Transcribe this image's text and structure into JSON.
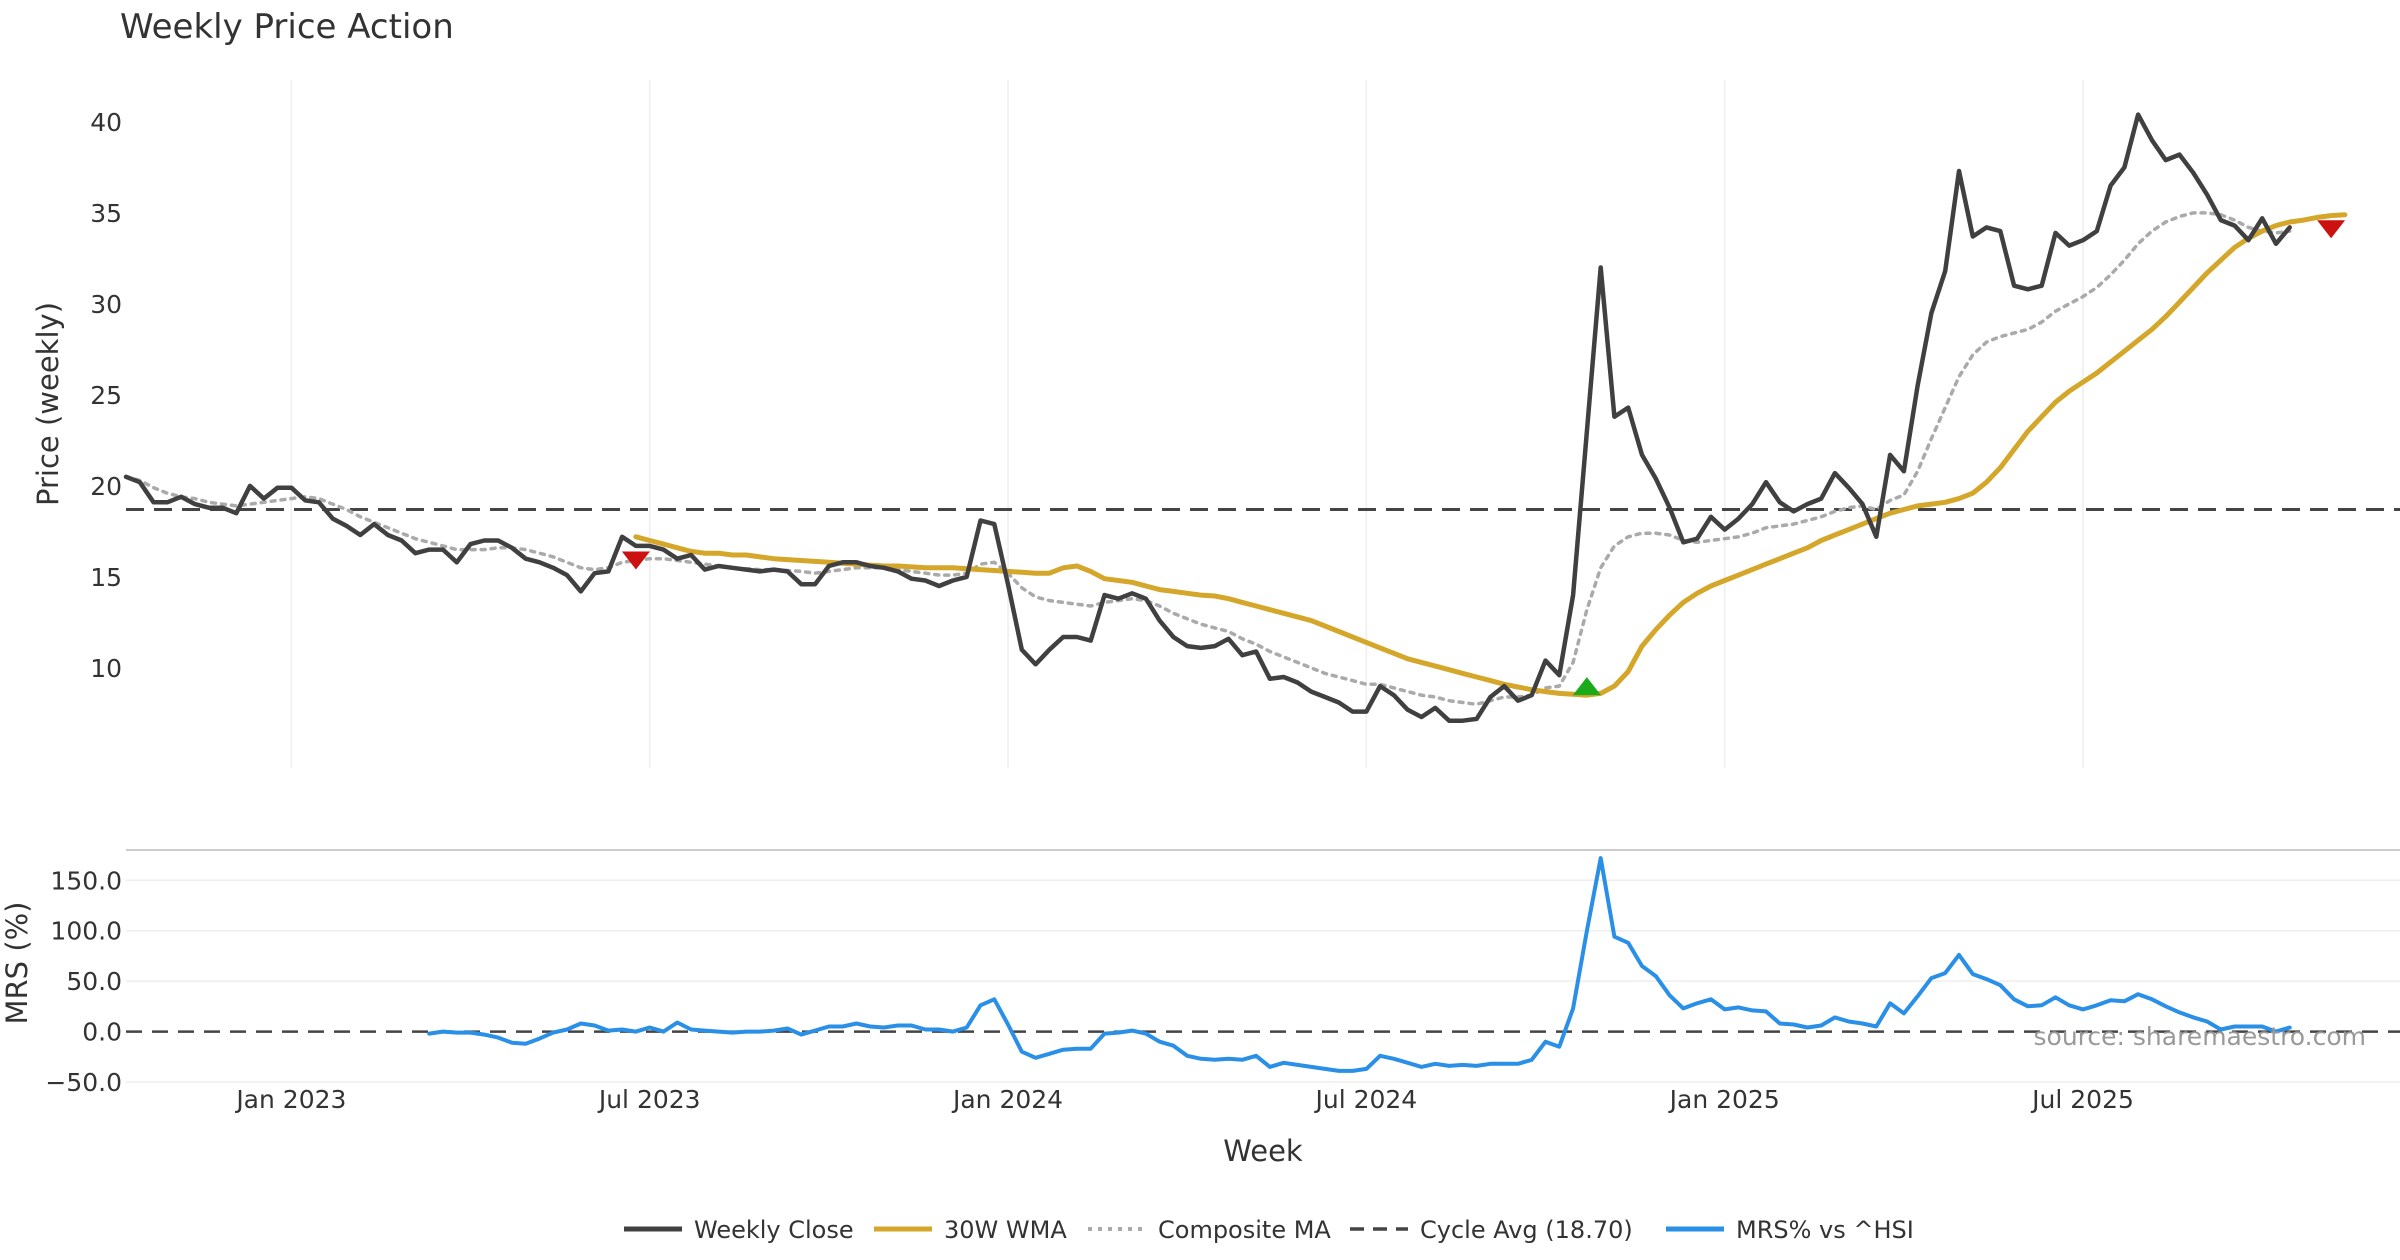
{
  "chart_data": {
    "type": "line",
    "title": "Weekly Price Action",
    "xlabel": "Week",
    "source": "source: sharemaestro.com",
    "colors": {
      "close": "#404040",
      "wma": "#D4A62A",
      "composite": "#AAAAAA",
      "cycle": "#444444",
      "mrs": "#2A8FE6",
      "buy_marker": "#1AAA1A",
      "sell_marker": "#CC1111",
      "grid": "#EEEEEE"
    },
    "x_ticks": [
      "Jan 2023",
      "Jul 2023",
      "Jan 2024",
      "Jul 2024",
      "Jan 2025",
      "Jul 2025"
    ],
    "x_range_weeks": [
      -12,
      153
    ],
    "price_panel": {
      "ylabel": "Price (weekly)",
      "ylim": [
        4.5,
        42.3
      ],
      "yticks": [
        10,
        15,
        20,
        25,
        30,
        35,
        40
      ],
      "cycle_avg": 18.7,
      "series": [
        {
          "name": "Weekly Close",
          "start_week": -12,
          "values": [
            20.5,
            20.2,
            19.1,
            19.1,
            19.4,
            19.0,
            18.8,
            18.8,
            18.5,
            20.0,
            19.3,
            19.9,
            19.9,
            19.2,
            19.1,
            18.2,
            17.8,
            17.3,
            17.9,
            17.3,
            17.0,
            16.3,
            16.5,
            16.5,
            15.8,
            16.8,
            17.0,
            17.0,
            16.6,
            16.0,
            15.8,
            15.5,
            15.1,
            14.2,
            15.2,
            15.3,
            17.2,
            16.7,
            16.7,
            16.5,
            16.0,
            16.2,
            15.4,
            15.6,
            15.5,
            15.4,
            15.3,
            15.4,
            15.3,
            14.6,
            14.6,
            15.6,
            15.8,
            15.8,
            15.6,
            15.5,
            15.3,
            14.9,
            14.8,
            14.5,
            14.8,
            15.0,
            18.1,
            17.9,
            14.6,
            11.0,
            10.2,
            11.0,
            11.7,
            11.7,
            11.5,
            14.0,
            13.8,
            14.1,
            13.8,
            12.6,
            11.7,
            11.2,
            11.1,
            11.2,
            11.6,
            10.7,
            10.9,
            9.4,
            9.5,
            9.2,
            8.7,
            8.4,
            8.1,
            7.6,
            7.6,
            9.0,
            8.5,
            7.7,
            7.3,
            7.8,
            7.1,
            7.1,
            7.2,
            8.4,
            9.0,
            8.2,
            8.5,
            10.4,
            9.6,
            14.0,
            23.0,
            32.0,
            23.8,
            24.3,
            21.7,
            20.4,
            18.8,
            16.9,
            17.1,
            18.3,
            17.6,
            18.2,
            19.0,
            20.2,
            19.1,
            18.6,
            19.0,
            19.3,
            20.7,
            19.9,
            19.0,
            17.2,
            21.7,
            20.8,
            25.5,
            29.5,
            31.8,
            37.3,
            33.7,
            34.2,
            34.0,
            31.0,
            30.8,
            31.0,
            33.9,
            33.2,
            33.5,
            34.0,
            36.5,
            37.5,
            40.4,
            39.0,
            37.9,
            38.2,
            37.2,
            36.0,
            34.6,
            34.3,
            33.5,
            34.7,
            33.3,
            34.2
          ]
        },
        {
          "name": "30W WMA",
          "start_week": 25,
          "values": [
            17.2,
            17.0,
            16.8,
            16.6,
            16.4,
            16.3,
            16.3,
            16.2,
            16.2,
            16.1,
            16.0,
            15.95,
            15.9,
            15.85,
            15.8,
            15.75,
            15.7,
            15.65,
            15.6,
            15.6,
            15.55,
            15.5,
            15.5,
            15.5,
            15.45,
            15.4,
            15.35,
            15.3,
            15.25,
            15.2,
            15.2,
            15.5,
            15.6,
            15.3,
            14.9,
            14.8,
            14.7,
            14.5,
            14.3,
            14.2,
            14.1,
            14.0,
            13.95,
            13.8,
            13.6,
            13.4,
            13.2,
            13.0,
            12.8,
            12.6,
            12.3,
            12.0,
            11.7,
            11.4,
            11.1,
            10.8,
            10.5,
            10.3,
            10.1,
            9.9,
            9.7,
            9.5,
            9.3,
            9.1,
            8.95,
            8.8,
            8.7,
            8.6,
            8.55,
            8.5,
            8.6,
            9.0,
            9.8,
            11.2,
            12.1,
            12.9,
            13.6,
            14.1,
            14.5,
            14.8,
            15.1,
            15.4,
            15.7,
            16.0,
            16.3,
            16.6,
            17.0,
            17.3,
            17.6,
            17.9,
            18.2,
            18.5,
            18.7,
            18.9,
            19.0,
            19.1,
            19.3,
            19.6,
            20.2,
            21.0,
            22.0,
            23.0,
            23.8,
            24.6,
            25.2,
            25.7,
            26.2,
            26.8,
            27.4,
            28.0,
            28.6,
            29.3,
            30.1,
            30.9,
            31.7,
            32.4,
            33.1,
            33.6,
            34.0,
            34.3,
            34.5,
            34.6,
            34.75,
            34.85,
            34.9
          ]
        },
        {
          "name": "Composite MA",
          "start_week": -12,
          "values": [
            20.5,
            20.3,
            19.9,
            19.6,
            19.4,
            19.3,
            19.1,
            19.0,
            18.9,
            19.0,
            19.1,
            19.2,
            19.3,
            19.4,
            19.3,
            19.0,
            18.7,
            18.3,
            18.0,
            17.7,
            17.4,
            17.1,
            16.9,
            16.7,
            16.5,
            16.5,
            16.5,
            16.6,
            16.6,
            16.5,
            16.3,
            16.1,
            15.8,
            15.5,
            15.4,
            15.5,
            15.8,
            15.9,
            16.0,
            16.0,
            15.9,
            15.8,
            15.7,
            15.6,
            15.5,
            15.45,
            15.4,
            15.4,
            15.35,
            15.3,
            15.2,
            15.3,
            15.4,
            15.5,
            15.5,
            15.5,
            15.4,
            15.3,
            15.2,
            15.1,
            15.1,
            15.2,
            15.7,
            15.8,
            15.2,
            14.4,
            13.9,
            13.7,
            13.6,
            13.5,
            13.4,
            13.6,
            13.7,
            13.8,
            13.7,
            13.4,
            13.0,
            12.7,
            12.4,
            12.2,
            12.0,
            11.6,
            11.3,
            10.9,
            10.6,
            10.3,
            10.0,
            9.7,
            9.5,
            9.3,
            9.1,
            9.1,
            8.9,
            8.7,
            8.5,
            8.4,
            8.2,
            8.1,
            8.0,
            8.2,
            8.4,
            8.4,
            8.5,
            8.9,
            9.0,
            10.3,
            13.2,
            15.5,
            16.7,
            17.2,
            17.4,
            17.4,
            17.3,
            17.0,
            16.9,
            17.0,
            17.1,
            17.2,
            17.4,
            17.7,
            17.8,
            17.9,
            18.1,
            18.3,
            18.6,
            18.8,
            18.9,
            18.7,
            19.2,
            19.5,
            20.8,
            22.6,
            24.3,
            26.0,
            27.2,
            27.9,
            28.2,
            28.4,
            28.6,
            29.0,
            29.6,
            30.0,
            30.4,
            30.9,
            31.6,
            32.4,
            33.3,
            34.0,
            34.5,
            34.8,
            35.0,
            35.0,
            34.9,
            34.6,
            34.2,
            34.0,
            33.9,
            34.0
          ]
        },
        {
          "name": "Cycle Avg (18.70)",
          "value": 18.7
        }
      ],
      "signals": [
        {
          "type": "sell",
          "week": 25,
          "value": 15.9
        },
        {
          "type": "buy",
          "week": 94,
          "value": 9.0
        },
        {
          "type": "sell",
          "week": 148,
          "value": 34.1
        }
      ]
    },
    "mrs_panel": {
      "ylabel": "MRS (%)",
      "ylim": [
        -50,
        180
      ],
      "yticks": [
        "150.0",
        "100.0",
        "50.0",
        "0.0",
        "−50.0"
      ],
      "ytick_values": [
        150,
        100,
        50,
        0,
        -50
      ],
      "series": [
        {
          "name": "MRS% vs ^HSI",
          "start_week": 10,
          "values": [
            -2,
            0,
            -1,
            -1,
            -3,
            -6,
            -11,
            -12,
            -7,
            -1,
            2,
            8,
            6,
            1,
            2,
            0,
            4,
            0,
            9,
            2,
            1,
            0,
            -1,
            0,
            0,
            1,
            3,
            -3,
            1,
            5,
            5,
            8,
            5,
            4,
            6,
            6,
            2,
            2,
            0,
            4,
            26,
            32,
            7,
            -20,
            -26,
            -22,
            -18,
            -17,
            -17,
            -2,
            -1,
            1,
            -2,
            -10,
            -14,
            -24,
            -27,
            -28,
            -27,
            -28,
            -24,
            -35,
            -31,
            -33,
            -35,
            -37,
            -39,
            -39,
            -37,
            -24,
            -27,
            -31,
            -35,
            -32,
            -34,
            -33,
            -34,
            -32,
            -32,
            -32,
            -28,
            -10,
            -15,
            23,
            100,
            172,
            94,
            88,
            65,
            55,
            36,
            23,
            28,
            32,
            22,
            24,
            21,
            20,
            8,
            7,
            4,
            6,
            14,
            10,
            8,
            5,
            28,
            18,
            35,
            53,
            58,
            76,
            57,
            52,
            46,
            32,
            25,
            26,
            34,
            26,
            22,
            26,
            31,
            30,
            37,
            32,
            25,
            19,
            14,
            10,
            2,
            5,
            5,
            5,
            0,
            4
          ]
        }
      ]
    },
    "legend": [
      {
        "label": "Weekly Close",
        "style": "solid-dark"
      },
      {
        "label": "30W WMA",
        "style": "solid-gold"
      },
      {
        "label": "Composite MA",
        "style": "dotted-gray"
      },
      {
        "label": "Cycle Avg (18.70)",
        "style": "dashed-dark"
      },
      {
        "label": "MRS% vs ^HSI",
        "style": "solid-blue"
      }
    ]
  }
}
